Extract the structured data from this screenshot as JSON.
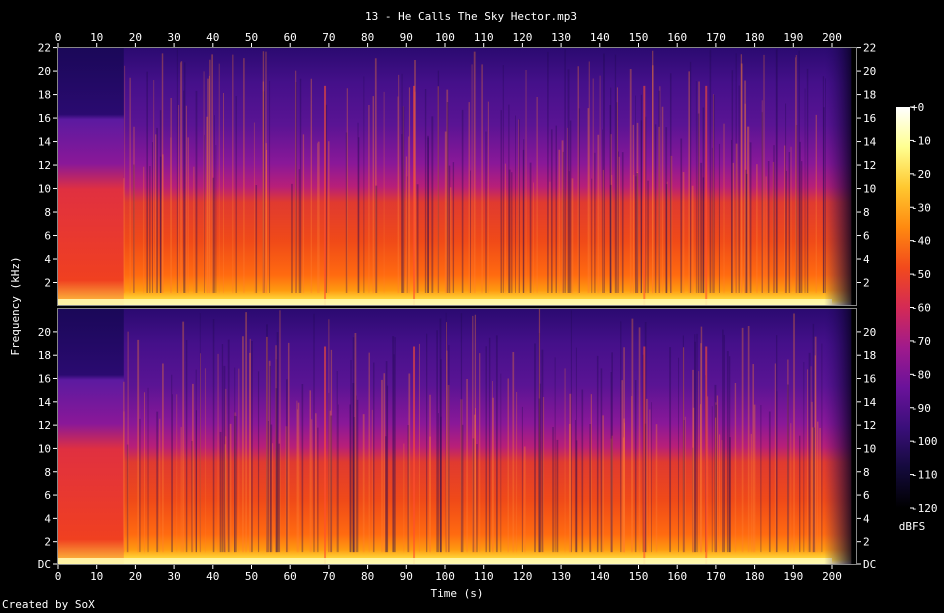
{
  "chart_data": {
    "type": "heatmap",
    "title": "13 - He Calls The Sky Hector.mp3",
    "xlabel": "Time (s)",
    "ylabel": "Frequency (kHz)",
    "xlim": [
      0,
      205
    ],
    "ylim": [
      0,
      22.05
    ],
    "x_ticks": [
      "0",
      "10",
      "20",
      "30",
      "40",
      "50",
      "60",
      "70",
      "80",
      "90",
      "100",
      "110",
      "120",
      "130",
      "140",
      "150",
      "160",
      "170",
      "180",
      "190",
      "200"
    ],
    "y_ticks_top": [
      "2",
      "4",
      "6",
      "8",
      "10",
      "12",
      "14",
      "16",
      "18",
      "20",
      "22"
    ],
    "y_ticks_bottom": [
      "DC",
      "2",
      "4",
      "6",
      "8",
      "10",
      "12",
      "14",
      "16",
      "18",
      "20"
    ],
    "channels": 2,
    "colorbar": {
      "label": "dBFS",
      "range": [
        -120,
        0
      ],
      "ticks": [
        "+0",
        "-10",
        "-20",
        "-30",
        "-40",
        "-50",
        "-60",
        "-70",
        "-80",
        "-90",
        "-100",
        "-110",
        "-120"
      ],
      "colors": [
        "#000000",
        "#140a3c",
        "#3a0f7a",
        "#6a129a",
        "#a01a8c",
        "#d42a55",
        "#f24a1c",
        "#ff8a10",
        "#ffc830",
        "#ffff90",
        "#ffffff"
      ]
    },
    "sections": [
      {
        "start": 0,
        "end": 17,
        "note_energy_upper_kHz": 16
      },
      {
        "start": 17,
        "end": 200,
        "note_energy_upper_kHz": 10
      },
      {
        "start": 200,
        "end": 205,
        "note_energy_upper_kHz": 2
      }
    ]
  },
  "footer": {
    "credit": "Created by SoX"
  }
}
